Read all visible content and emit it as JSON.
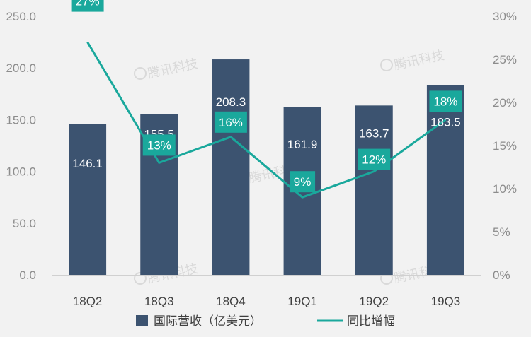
{
  "chart_data": {
    "type": "bar",
    "categories": [
      "18Q2",
      "18Q3",
      "18Q4",
      "19Q1",
      "19Q2",
      "19Q3"
    ],
    "series": [
      {
        "name": "国际营收（亿美元）",
        "type": "bar",
        "axis": "left",
        "values": [
          146.1,
          155.5,
          208.3,
          161.9,
          163.7,
          183.5
        ],
        "labels": [
          "146.1",
          "155.5",
          "208.3",
          "161.9",
          "163.7",
          "183.5"
        ],
        "color": "#3c5370"
      },
      {
        "name": "同比增幅",
        "type": "line",
        "axis": "right",
        "values": [
          27,
          13,
          16,
          9,
          12,
          18
        ],
        "labels": [
          "27%",
          "13%",
          "16%",
          "9%",
          "12%",
          "18%"
        ],
        "color": "#1aa89c"
      }
    ],
    "y_left": {
      "ylim": [
        0,
        250
      ],
      "ticks": [
        "0.0",
        "50.0",
        "100.0",
        "150.0",
        "200.0",
        "250.0"
      ]
    },
    "y_right": {
      "ylim": [
        0,
        30
      ],
      "ticks": [
        "0%",
        "5%",
        "10%",
        "15%",
        "20%",
        "25%",
        "30%"
      ]
    },
    "legend_position": "bottom",
    "grid": false,
    "watermark": "腾讯科技"
  }
}
